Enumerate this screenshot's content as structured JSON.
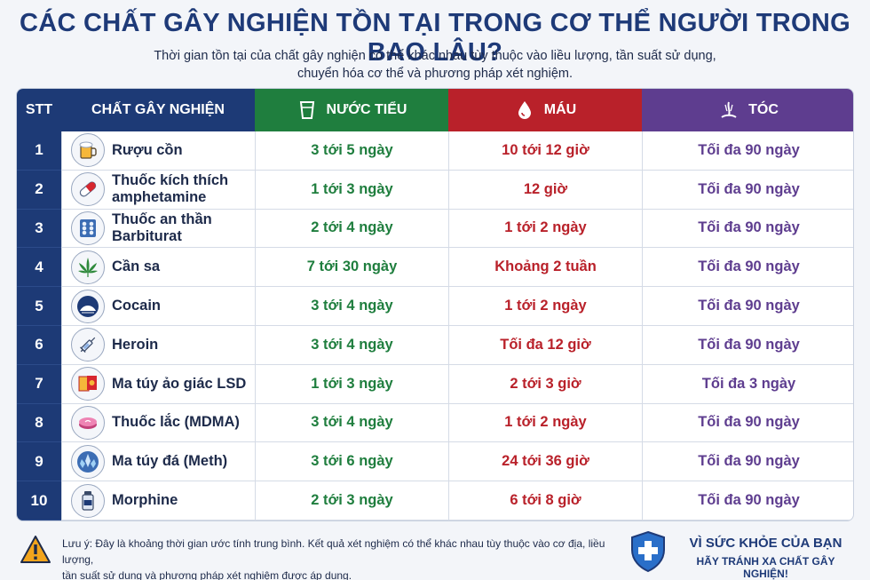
{
  "title": "CÁC CHẤT GÂY NGHIỆN TỒN TẠI TRONG CƠ THỂ NGƯỜI TRONG BAO LÂU?",
  "subtitle_line1": "Thời gian tồn tại của chất gây nghiện có thể khác nhau tùy thuộc vào liều lượng, tần suất sử dụng,",
  "subtitle_line2": "chuyển hóa cơ thể và phương pháp xét nghiệm.",
  "headers": {
    "stt": "STT",
    "substance": "CHẤT GÂY NGHIỆN",
    "urine": "NƯỚC TIỂU",
    "blood": "MÁU",
    "hair": "TÓC"
  },
  "rows": [
    {
      "stt": "1",
      "icon": "beer-mug-icon",
      "name1": "Rượu cồn",
      "name2": "",
      "urine": "3 tới 5 ngày",
      "blood": "10 tới 12 giờ",
      "hair": "Tối đa 90 ngày"
    },
    {
      "stt": "2",
      "icon": "capsule-icon",
      "name1": "Thuốc kích thích",
      "name2": "amphetamine",
      "urine": "1 tới 3 ngày",
      "blood": "12 giờ",
      "hair": "Tối đa 90 ngày"
    },
    {
      "stt": "3",
      "icon": "pill-blister-icon",
      "name1": "Thuốc an thần",
      "name2": "Barbiturat",
      "urine": "2 tới 4 ngày",
      "blood": "1 tới 2 ngày",
      "hair": "Tối đa 90 ngày"
    },
    {
      "stt": "4",
      "icon": "cannabis-leaf-icon",
      "name1": "Cần sa",
      "name2": "",
      "urine": "7 tới 30 ngày",
      "blood": "Khoảng 2 tuần",
      "hair": "Tối đa 90 ngày"
    },
    {
      "stt": "5",
      "icon": "powder-icon",
      "name1": "Cocain",
      "name2": "",
      "urine": "3 tới 4 ngày",
      "blood": "1 tới 2 ngày",
      "hair": "Tối đa 90 ngày"
    },
    {
      "stt": "6",
      "icon": "syringe-icon",
      "name1": "Heroin",
      "name2": "",
      "urine": "3 tới 4 ngày",
      "blood": "Tối đa 12 giờ",
      "hair": "Tối đa 90 ngày"
    },
    {
      "stt": "7",
      "icon": "blotter-paper-icon",
      "name1": "Ma túy ảo giác LSD",
      "name2": "",
      "urine": "1 tới 3 ngày",
      "blood": "2 tới 3 giờ",
      "hair": "Tối đa 3 ngày"
    },
    {
      "stt": "8",
      "icon": "ecstasy-pill-icon",
      "name1": "Thuốc lắc (MDMA)",
      "name2": "",
      "urine": "3 tới 4 ngày",
      "blood": "1 tới 2 ngày",
      "hair": "Tối đa 90 ngày"
    },
    {
      "stt": "9",
      "icon": "crystal-icon",
      "name1": "Ma túy đá (Meth)",
      "name2": "",
      "urine": "3 tới 6 ngày",
      "blood": "24 tới 36 giờ",
      "hair": "Tối đa 90 ngày"
    },
    {
      "stt": "10",
      "icon": "vial-icon",
      "name1": "Morphine",
      "name2": "",
      "urine": "2 tới 3 ngày",
      "blood": "6 tới 8 giờ",
      "hair": "Tối đa 90 ngày"
    }
  ],
  "note_line1": "Lưu ý: Đây là khoảng thời gian ước tính trung bình. Kết quả xét nghiệm có thể khác nhau tùy thuộc vào cơ địa, liều lượng,",
  "note_line2": "tần suất sử dụng và phương pháp xét nghiệm được áp dụng.",
  "slogan_line1": "VÌ SỨC KHỎE CỦA BẠN",
  "slogan_line2": "HÃY TRÁNH XA CHẤT GÂY NGHIỆN!",
  "colors": {
    "navy": "#1d3a76",
    "urine": "#1f7e3e",
    "blood": "#b9212a",
    "hair": "#5e3d8f"
  }
}
